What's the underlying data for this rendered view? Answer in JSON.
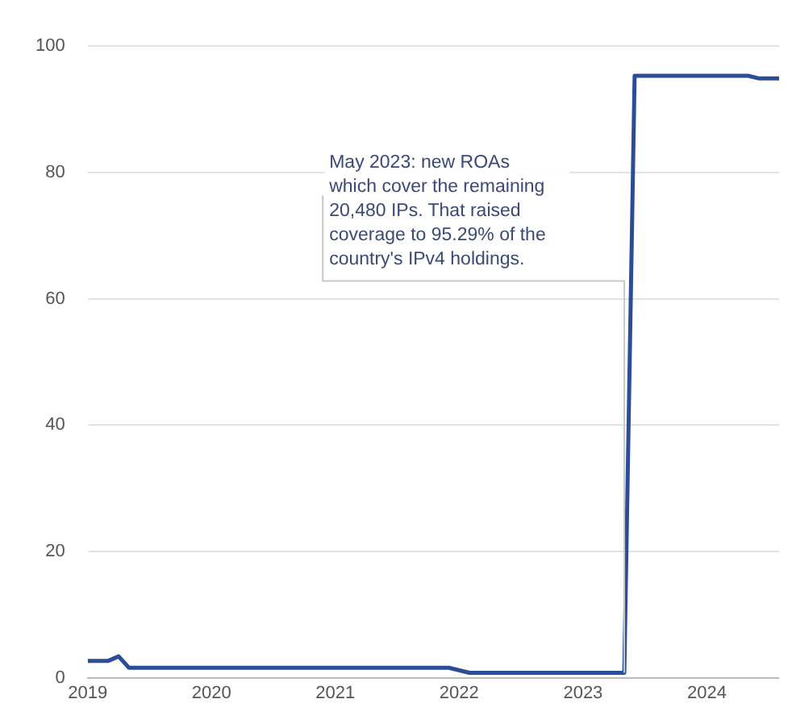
{
  "chart_data": {
    "type": "line",
    "x": [
      "2019-01",
      "2019-03",
      "2019-04",
      "2019-05",
      "2021-12",
      "2022-02",
      "2023-05",
      "2023-06",
      "2024-05",
      "2024-06",
      "2024-08"
    ],
    "series": [
      {
        "color": "#2b4c96",
        "values": [
          2.7,
          2.7,
          3.4,
          1.6,
          1.6,
          0.8,
          0.8,
          95.3,
          95.3,
          94.9,
          94.9
        ]
      }
    ],
    "xlim": [
      "2019-01",
      "2024-08"
    ],
    "xticks": [
      "2019",
      "2020",
      "2021",
      "2022",
      "2023",
      "2024"
    ],
    "ylim": [
      0,
      100
    ],
    "yticks": [
      0,
      20,
      40,
      60,
      80,
      100
    ],
    "grid": "y",
    "legend": false,
    "marker": "none",
    "line_style": "solid",
    "annotations": [
      {
        "text": "May 2023: new ROAs which cover the remaining 20,480 IPs. That raised coverage to 95.29% of the country's IPv4 holdings.",
        "x": "2023-05",
        "y": 0.8
      }
    ]
  }
}
